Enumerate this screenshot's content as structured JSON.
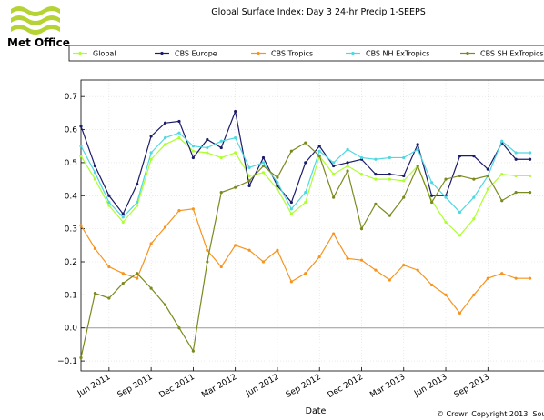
{
  "logo": {
    "text": "Met Office"
  },
  "chart_data": {
    "type": "line",
    "title": "Global Surface Index: Day 3 24-hr Precip 1-SEEPS",
    "x_label": "Date",
    "footer": "© Crown Copyright 2013. Sou",
    "x": [
      "2011-04",
      "2011-05",
      "2011-06",
      "2011-07",
      "2011-08",
      "2011-09",
      "2011-10",
      "2011-11",
      "2011-12",
      "2012-01",
      "2012-02",
      "2012-03",
      "2012-04",
      "2012-05",
      "2012-06",
      "2012-07",
      "2012-08",
      "2012-09",
      "2012-10",
      "2012-11",
      "2012-12",
      "2013-01",
      "2013-02",
      "2013-03",
      "2013-04",
      "2013-05",
      "2013-06",
      "2013-07",
      "2013-08",
      "2013-09",
      "2013-10",
      "2013-11",
      "2013-12"
    ],
    "xlim": [
      "2011-04",
      "2014-01"
    ],
    "xticks": [
      {
        "value": "2011-06",
        "label": "Jun 2011"
      },
      {
        "value": "2011-09",
        "label": "Sep 2011"
      },
      {
        "value": "2011-12",
        "label": "Dec 2011"
      },
      {
        "value": "2012-03",
        "label": "Mar 2012"
      },
      {
        "value": "2012-06",
        "label": "Jun 2012"
      },
      {
        "value": "2012-09",
        "label": "Sep 2012"
      },
      {
        "value": "2012-12",
        "label": "Dec 2012"
      },
      {
        "value": "2013-03",
        "label": "Mar 2013"
      },
      {
        "value": "2013-06",
        "label": "Jun 2013"
      },
      {
        "value": "2013-09",
        "label": "Sep 2013"
      }
    ],
    "ylim": [
      -0.13,
      0.75
    ],
    "yticks": [
      {
        "value": -0.1,
        "label": "−0.1"
      },
      {
        "value": 0,
        "label": "0.0"
      },
      0.1,
      0.2,
      0.3,
      0.4,
      0.5,
      0.6,
      0.7
    ],
    "grid": true,
    "legend": "top",
    "series": [
      {
        "name": "Global",
        "color": "#adff2f",
        "values": [
          0.52,
          0.45,
          0.37,
          0.32,
          0.37,
          0.51,
          0.555,
          0.575,
          0.535,
          0.53,
          0.515,
          0.53,
          0.46,
          0.47,
          0.42,
          0.345,
          0.38,
          0.52,
          0.465,
          0.49,
          0.465,
          0.45,
          0.45,
          0.445,
          0.49,
          0.385,
          0.32,
          0.28,
          0.33,
          0.42,
          0.465,
          0.46,
          0.46
        ]
      },
      {
        "name": "CBS Europe",
        "color": "#1c1c6b",
        "values": [
          0.61,
          0.49,
          0.4,
          0.345,
          0.435,
          0.58,
          0.62,
          0.625,
          0.515,
          0.57,
          0.545,
          0.655,
          0.43,
          0.515,
          0.43,
          0.38,
          0.5,
          0.55,
          0.49,
          0.5,
          0.51,
          0.465,
          0.465,
          0.46,
          0.555,
          0.4,
          0.4,
          0.52,
          0.52,
          0.48,
          0.56,
          0.51,
          0.51
        ]
      },
      {
        "name": "CBS Tropics",
        "color": "#f7941d",
        "values": [
          0.31,
          0.24,
          0.185,
          0.165,
          0.15,
          0.255,
          0.305,
          0.355,
          0.36,
          0.235,
          0.185,
          0.25,
          0.235,
          0.2,
          0.235,
          0.14,
          0.165,
          0.215,
          0.285,
          0.21,
          0.205,
          0.175,
          0.145,
          0.19,
          0.175,
          0.13,
          0.1,
          0.045,
          0.1,
          0.15,
          0.165,
          0.15,
          0.15
        ]
      },
      {
        "name": "CBS NH ExTropics",
        "color": "#4fd8e0",
        "values": [
          0.55,
          0.47,
          0.38,
          0.335,
          0.38,
          0.53,
          0.575,
          0.59,
          0.55,
          0.545,
          0.565,
          0.575,
          0.485,
          0.5,
          0.44,
          0.36,
          0.41,
          0.535,
          0.5,
          0.54,
          0.515,
          0.51,
          0.515,
          0.515,
          0.54,
          0.44,
          0.395,
          0.35,
          0.395,
          0.46,
          0.565,
          0.53,
          0.53
        ]
      },
      {
        "name": "CBS SH ExTropics",
        "color": "#7b8a1e",
        "values": [
          -0.09,
          0.105,
          0.09,
          0.135,
          0.165,
          0.12,
          0.07,
          0.0,
          -0.07,
          0.2,
          0.41,
          0.425,
          0.445,
          0.49,
          0.455,
          0.535,
          0.56,
          0.52,
          0.395,
          0.475,
          0.3,
          0.375,
          0.34,
          0.395,
          0.49,
          0.38,
          0.45,
          0.46,
          0.45,
          0.46,
          0.385,
          0.41,
          0.41
        ]
      }
    ]
  }
}
